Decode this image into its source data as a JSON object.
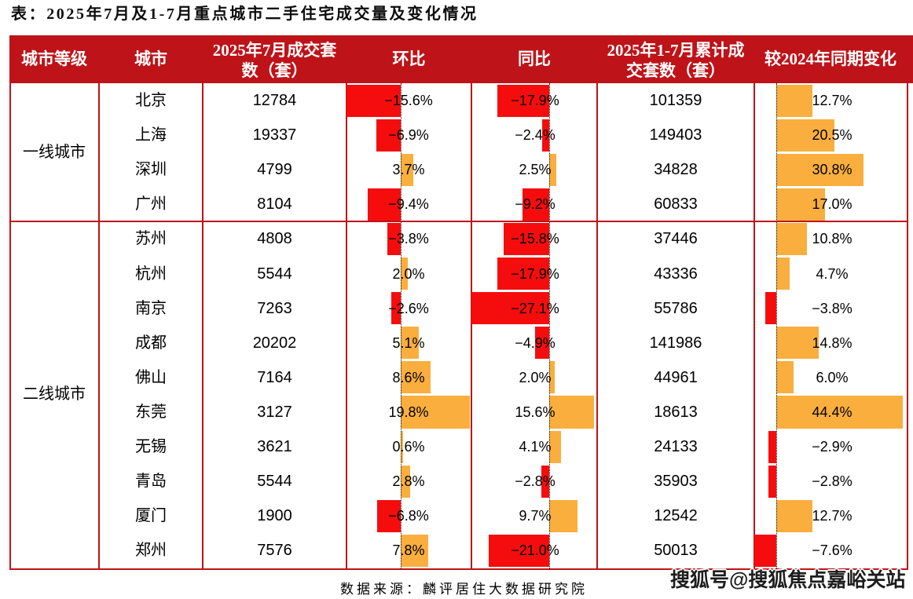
{
  "title": "表：2025年7月及1-7月重点城市二手住宅成交量及变化情况",
  "footer": {
    "source_note": "数据来源：麟评居住大数据研究院"
  },
  "watermark": "搜狐号@搜狐焦点嘉峪关站",
  "colors": {
    "header_bg": "#be1318",
    "border": "#be1318",
    "negative_bar": "#f50d0d",
    "positive_bar": "#faae3d",
    "zero_line": "#111111"
  },
  "chart_data": {
    "type": "table",
    "title": "2025年7月及1-7月重点城市二手住宅成交量及变化情况",
    "columns": [
      {
        "label": "城市等级",
        "lines": [
          "城市等级"
        ]
      },
      {
        "label": "城市",
        "lines": [
          "城市"
        ]
      },
      {
        "label": "2025年7月成交套数（套）",
        "lines": [
          "2025年7月成交套",
          "数（套）"
        ]
      },
      {
        "label": "环比",
        "lines": [
          "环比"
        ]
      },
      {
        "label": "同比",
        "lines": [
          "同比"
        ]
      },
      {
        "label": "2025年1-7月累计成交套数（套）",
        "lines": [
          "2025年1-7月累计成",
          "交套数（套）"
        ]
      },
      {
        "label": "较2024年同期变化",
        "lines": [
          "较2024年同期变化"
        ]
      }
    ],
    "groups": [
      {
        "tier": "一线城市",
        "rows": [
          {
            "city": "北京",
            "jul_units": "12784",
            "mom_pct": -15.6,
            "yoy_pct": -17.9,
            "cum_units": "101359",
            "chg_pct": 12.7
          },
          {
            "city": "上海",
            "jul_units": "19337",
            "mom_pct": -6.9,
            "yoy_pct": -2.4,
            "cum_units": "149403",
            "chg_pct": 20.5
          },
          {
            "city": "深圳",
            "jul_units": "4799",
            "mom_pct": 3.7,
            "yoy_pct": 2.5,
            "cum_units": "34828",
            "chg_pct": 30.8
          },
          {
            "city": "广州",
            "jul_units": "8104",
            "mom_pct": -9.4,
            "yoy_pct": -9.2,
            "cum_units": "60833",
            "chg_pct": 17.0
          }
        ]
      },
      {
        "tier": "二线城市",
        "rows": [
          {
            "city": "苏州",
            "jul_units": "4808",
            "mom_pct": -3.8,
            "yoy_pct": -15.8,
            "cum_units": "37446",
            "chg_pct": 10.8
          },
          {
            "city": "杭州",
            "jul_units": "5544",
            "mom_pct": 2.0,
            "yoy_pct": -17.9,
            "cum_units": "43336",
            "chg_pct": 4.7
          },
          {
            "city": "南京",
            "jul_units": "7263",
            "mom_pct": -2.6,
            "yoy_pct": -27.1,
            "cum_units": "55786",
            "chg_pct": -3.8
          },
          {
            "city": "成都",
            "jul_units": "20202",
            "mom_pct": 5.1,
            "yoy_pct": -4.9,
            "cum_units": "141986",
            "chg_pct": 14.8
          },
          {
            "city": "佛山",
            "jul_units": "7164",
            "mom_pct": 8.6,
            "yoy_pct": 2.0,
            "cum_units": "44961",
            "chg_pct": 6.0
          },
          {
            "city": "东莞",
            "jul_units": "3127",
            "mom_pct": 19.8,
            "yoy_pct": 15.6,
            "cum_units": "18613",
            "chg_pct": 44.4
          },
          {
            "city": "无锡",
            "jul_units": "3621",
            "mom_pct": 0.6,
            "yoy_pct": 4.1,
            "cum_units": "24133",
            "chg_pct": -2.9
          },
          {
            "city": "青岛",
            "jul_units": "5544",
            "mom_pct": 2.8,
            "yoy_pct": -2.8,
            "cum_units": "35903",
            "chg_pct": -2.8
          },
          {
            "city": "厦门",
            "jul_units": "1900",
            "mom_pct": -6.8,
            "yoy_pct": 9.7,
            "cum_units": "12542",
            "chg_pct": 12.7
          },
          {
            "city": "郑州",
            "jul_units": "7576",
            "mom_pct": 7.8,
            "yoy_pct": -21.0,
            "cum_units": "50013",
            "chg_pct": -7.6
          }
        ]
      }
    ],
    "bar_columns": [
      "环比",
      "同比",
      "较2024年同期变化"
    ],
    "pct_format": "x.x%"
  }
}
